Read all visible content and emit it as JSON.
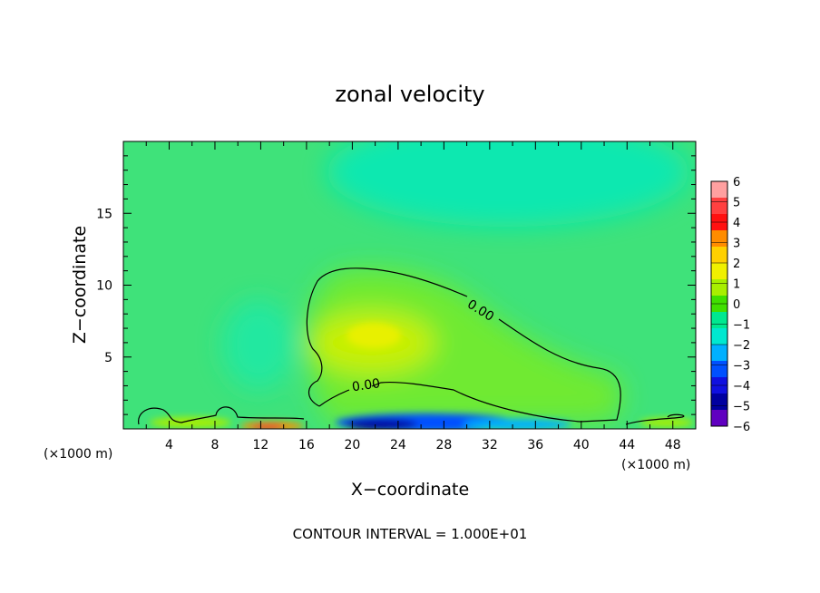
{
  "chart_data": {
    "type": "heatmap",
    "title": "zonal velocity",
    "xlabel": "X−coordinate",
    "ylabel": "Z−coordinate",
    "x_unit_left": "(×1000 m)",
    "x_unit_right": "(×1000 m)",
    "footer": "CONTOUR INTERVAL = 1.000E+01",
    "xlim": [
      0,
      50
    ],
    "ylim": [
      0,
      20
    ],
    "x_ticks": [
      "4",
      "8",
      "12",
      "16",
      "20",
      "24",
      "28",
      "32",
      "36",
      "40",
      "44",
      "48"
    ],
    "x_tick_values": [
      4,
      8,
      12,
      16,
      20,
      24,
      28,
      32,
      36,
      40,
      44,
      48
    ],
    "y_ticks": [
      "5",
      "10",
      "15"
    ],
    "y_tick_values": [
      5,
      10,
      15
    ],
    "colorbar": {
      "labels": [
        "6",
        "5",
        "4",
        "3",
        "2",
        "1",
        "0",
        "−1",
        "−2",
        "−3",
        "−4",
        "−5",
        "−6"
      ],
      "colors": [
        "#ffa0a0",
        "#ff4040",
        "#ff1010",
        "#ff8c00",
        "#ffd000",
        "#f0f000",
        "#a8ef00",
        "#40e000",
        "#00e890",
        "#00e8d0",
        "#00b0ff",
        "#0050ff",
        "#1010e0",
        "#0000a0",
        "#6000c0"
      ]
    },
    "background_value": -0.5,
    "features": [
      {
        "kind": "positive core",
        "center": [
          22,
          6.5
        ],
        "peak_value": 2
      },
      {
        "kind": "negative surface jet",
        "x_range": [
          18,
          40
        ],
        "z": 0.3,
        "peak_value": -5
      },
      {
        "kind": "positive surface jet",
        "x_range": [
          10,
          14
        ],
        "z": 0.2,
        "peak_value": 4
      },
      {
        "kind": "negative upper region",
        "center": [
          30,
          17.5
        ],
        "peak_value": -1.5
      }
    ],
    "contour_labels": [
      {
        "text": "0.00",
        "x": 31,
        "z": 8.0
      },
      {
        "text": "0.00",
        "x": 21.5,
        "z": 3.2
      }
    ]
  }
}
